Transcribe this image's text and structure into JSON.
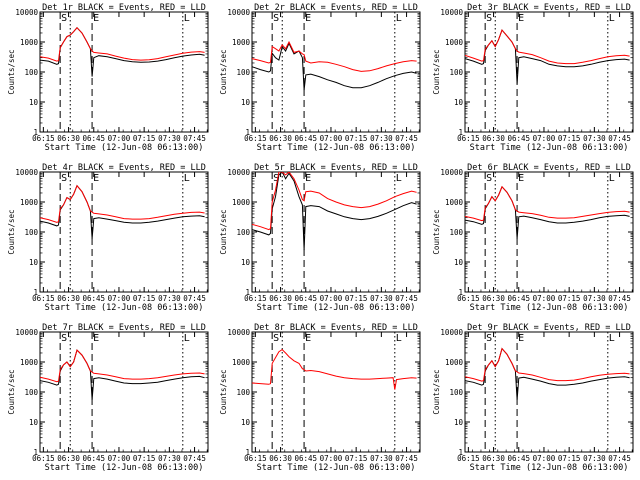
{
  "chart_data": {
    "type": "line",
    "layout": "3x3 grid",
    "y_scale": "log",
    "ylim": [
      1,
      10000
    ],
    "y_ticks": [
      "1",
      "10",
      "100",
      "1000",
      "10000"
    ],
    "ylabel": "Counts/sec",
    "xlabel": "Start Time (12-Jun-08 06:13:00)",
    "x_unit": "minutes after 06:13:00",
    "xlim": [
      0,
      100
    ],
    "x_ticks": [
      {
        "t": 2,
        "label": "06:15"
      },
      {
        "t": 17,
        "label": "06:30"
      },
      {
        "t": 32,
        "label": "06:45"
      },
      {
        "t": 47,
        "label": "07:00"
      },
      {
        "t": 62,
        "label": "07:15"
      },
      {
        "t": 77,
        "label": "07:30"
      },
      {
        "t": 92,
        "label": "07:45"
      }
    ],
    "series_legend": {
      "black": "Events",
      "red": "LLD"
    },
    "series_colors": {
      "black": "#000000",
      "red": "#ff0000"
    },
    "markers": [
      {
        "label": "S",
        "t": 12,
        "style": "dashed"
      },
      {
        "label": "",
        "t": 18,
        "style": "dotted"
      },
      {
        "label": "E",
        "t": 31,
        "style": "dashed"
      },
      {
        "label": "L",
        "t": 85,
        "style": "dotted"
      }
    ],
    "panels": [
      {
        "title": "Det 1r BLACK = Events, RED = LLD",
        "t": [
          0,
          5,
          10,
          11,
          12,
          14,
          16,
          18,
          20,
          22,
          25,
          28,
          30,
          31,
          32,
          35,
          40,
          45,
          50,
          55,
          60,
          65,
          70,
          75,
          80,
          85,
          90,
          95,
          98
        ],
        "black": [
          250,
          230,
          180,
          190,
          640,
          1000,
          1500,
          1700,
          2200,
          3000,
          2000,
          1000,
          600,
          70,
          300,
          350,
          320,
          280,
          240,
          220,
          210,
          215,
          230,
          260,
          300,
          340,
          370,
          390,
          360
        ],
        "red": [
          320,
          290,
          230,
          240,
          650,
          1000,
          1500,
          1700,
          2200,
          3000,
          2000,
          1000,
          600,
          500,
          450,
          430,
          400,
          340,
          290,
          260,
          250,
          255,
          280,
          320,
          370,
          420,
          460,
          480,
          450
        ]
      },
      {
        "title": "Det 2r BLACK = Events, RED = LLD",
        "t": [
          0,
          5,
          10,
          11,
          12,
          14,
          16,
          18,
          20,
          22,
          25,
          28,
          30,
          31,
          32,
          35,
          40,
          45,
          50,
          55,
          60,
          65,
          70,
          75,
          80,
          85,
          90,
          95,
          98
        ],
        "black": [
          150,
          120,
          100,
          110,
          420,
          300,
          250,
          700,
          500,
          900,
          400,
          500,
          300,
          25,
          80,
          85,
          70,
          55,
          45,
          35,
          30,
          30,
          35,
          45,
          60,
          75,
          90,
          100,
          90
        ],
        "red": [
          280,
          240,
          200,
          210,
          700,
          600,
          500,
          800,
          600,
          1000,
          450,
          500,
          400,
          380,
          230,
          200,
          220,
          210,
          180,
          150,
          120,
          105,
          110,
          130,
          160,
          190,
          220,
          240,
          230
        ]
      },
      {
        "title": "Det 3r BLACK = Events, RED = LLD",
        "t": [
          0,
          5,
          10,
          11,
          12,
          14,
          16,
          18,
          20,
          22,
          25,
          28,
          30,
          31,
          32,
          35,
          40,
          45,
          50,
          55,
          60,
          65,
          70,
          75,
          80,
          85,
          90,
          95,
          98
        ],
        "black": [
          280,
          230,
          180,
          190,
          520,
          800,
          1100,
          700,
          1200,
          2500,
          1600,
          1000,
          600,
          40,
          300,
          320,
          280,
          240,
          180,
          160,
          150,
          150,
          160,
          180,
          210,
          240,
          260,
          270,
          250
        ],
        "red": [
          360,
          290,
          230,
          240,
          580,
          800,
          1100,
          700,
          1200,
          2500,
          1600,
          1000,
          600,
          500,
          460,
          430,
          380,
          300,
          230,
          200,
          190,
          190,
          210,
          240,
          280,
          320,
          350,
          360,
          340
        ]
      },
      {
        "title": "Det 4r BLACK = Events, RED = LLD",
        "t": [
          0,
          5,
          10,
          11,
          12,
          14,
          16,
          18,
          20,
          22,
          25,
          28,
          30,
          31,
          32,
          35,
          40,
          45,
          50,
          55,
          60,
          65,
          70,
          75,
          80,
          85,
          90,
          95,
          98
        ],
        "black": [
          230,
          200,
          160,
          170,
          550,
          800,
          1400,
          1200,
          1800,
          3500,
          2200,
          1000,
          500,
          60,
          280,
          300,
          270,
          240,
          210,
          200,
          200,
          210,
          230,
          260,
          290,
          320,
          340,
          350,
          320
        ],
        "red": [
          300,
          260,
          210,
          220,
          600,
          800,
          1400,
          1200,
          1800,
          3500,
          2200,
          1000,
          500,
          460,
          420,
          400,
          370,
          320,
          280,
          270,
          270,
          280,
          310,
          350,
          390,
          420,
          450,
          460,
          430
        ]
      },
      {
        "title": "Det 5r BLACK = Events, RED = LLD",
        "t": [
          0,
          5,
          10,
          11,
          12,
          14,
          16,
          18,
          20,
          22,
          25,
          28,
          30,
          31,
          32,
          35,
          40,
          45,
          50,
          55,
          60,
          65,
          70,
          75,
          80,
          85,
          90,
          95,
          98
        ],
        "black": [
          120,
          100,
          80,
          90,
          600,
          1500,
          8000,
          10000,
          6000,
          9000,
          5000,
          1500,
          800,
          25,
          700,
          760,
          700,
          500,
          400,
          320,
          280,
          260,
          280,
          330,
          420,
          560,
          750,
          950,
          850
        ],
        "red": [
          180,
          150,
          120,
          130,
          1000,
          2500,
          10000,
          10000,
          8000,
          10000,
          6000,
          2500,
          1200,
          1100,
          2200,
          2300,
          2000,
          1300,
          1000,
          800,
          700,
          650,
          700,
          850,
          1100,
          1500,
          1900,
          2300,
          2100
        ]
      },
      {
        "title": "Det 6r BLACK = Events, RED = LLD",
        "t": [
          0,
          5,
          10,
          11,
          12,
          14,
          16,
          18,
          20,
          22,
          25,
          28,
          30,
          31,
          32,
          35,
          40,
          45,
          50,
          55,
          60,
          65,
          70,
          75,
          80,
          85,
          90,
          95,
          98
        ],
        "black": [
          250,
          220,
          180,
          190,
          600,
          900,
          1500,
          1100,
          1700,
          3200,
          2100,
          1100,
          550,
          60,
          320,
          340,
          300,
          260,
          220,
          200,
          200,
          210,
          230,
          260,
          300,
          330,
          350,
          360,
          330
        ],
        "red": [
          330,
          290,
          240,
          250,
          650,
          900,
          1500,
          1100,
          1700,
          3200,
          2100,
          1100,
          550,
          500,
          460,
          440,
          410,
          360,
          310,
          290,
          290,
          300,
          330,
          370,
          410,
          450,
          480,
          490,
          460
        ]
      },
      {
        "title": "Det 7r BLACK = Events, RED = LLD",
        "t": [
          0,
          5,
          10,
          11,
          12,
          14,
          16,
          18,
          20,
          22,
          25,
          28,
          30,
          31,
          32,
          35,
          40,
          45,
          50,
          55,
          60,
          65,
          70,
          75,
          80,
          85,
          90,
          95,
          98
        ],
        "black": [
          240,
          210,
          170,
          180,
          500,
          800,
          1000,
          700,
          1000,
          2500,
          1700,
          900,
          500,
          55,
          280,
          300,
          270,
          230,
          200,
          190,
          190,
          200,
          210,
          240,
          270,
          300,
          320,
          330,
          300
        ],
        "red": [
          310,
          270,
          220,
          230,
          560,
          800,
          1000,
          700,
          1000,
          2500,
          1700,
          900,
          500,
          460,
          420,
          400,
          370,
          320,
          280,
          270,
          270,
          280,
          300,
          330,
          370,
          400,
          420,
          430,
          400
        ]
      },
      {
        "title": "Det 8r BLACK = Events, RED = LLD",
        "t": [
          0,
          5,
          10,
          11,
          12,
          14,
          16,
          18,
          20,
          22,
          25,
          28,
          30,
          31,
          32,
          35,
          40,
          45,
          50,
          55,
          60,
          65,
          70,
          75,
          80,
          84,
          85,
          86,
          90,
          95,
          98
        ],
        "black": [
          null,
          null,
          null,
          null,
          null,
          null,
          null,
          null,
          null,
          null,
          null,
          null,
          null,
          null,
          null,
          null,
          null,
          null,
          null,
          null,
          null,
          null,
          null,
          null,
          null,
          null,
          null,
          null,
          null,
          null,
          null
        ],
        "red": [
          200,
          190,
          180,
          190,
          900,
          1400,
          2200,
          2600,
          2000,
          1500,
          1100,
          900,
          600,
          560,
          500,
          520,
          480,
          400,
          340,
          300,
          280,
          270,
          270,
          280,
          290,
          300,
          120,
          260,
          280,
          300,
          290
        ]
      },
      {
        "title": "Det 9r BLACK = Events, RED = LLD",
        "t": [
          0,
          5,
          10,
          11,
          12,
          14,
          16,
          18,
          20,
          22,
          25,
          28,
          30,
          31,
          32,
          35,
          40,
          45,
          50,
          55,
          60,
          65,
          70,
          75,
          80,
          85,
          90,
          95,
          98
        ],
        "black": [
          240,
          210,
          170,
          180,
          500,
          800,
          1100,
          700,
          1100,
          2800,
          1800,
          900,
          500,
          55,
          290,
          310,
          270,
          230,
          190,
          170,
          170,
          180,
          200,
          230,
          260,
          290,
          310,
          320,
          300
        ],
        "red": [
          320,
          280,
          230,
          240,
          560,
          800,
          1100,
          700,
          1100,
          2800,
          1800,
          900,
          500,
          470,
          430,
          410,
          370,
          310,
          260,
          240,
          240,
          250,
          280,
          320,
          360,
          390,
          410,
          420,
          400
        ]
      }
    ]
  }
}
